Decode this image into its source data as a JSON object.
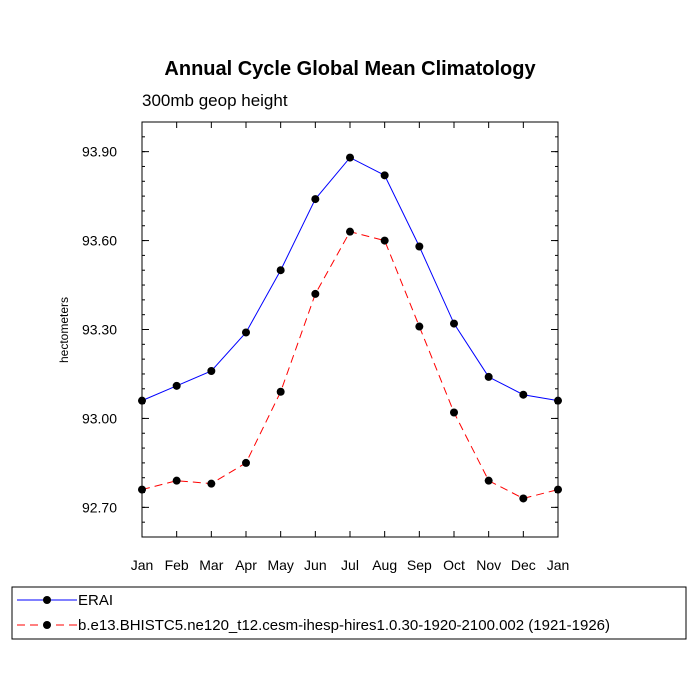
{
  "chart_data": {
    "type": "line",
    "title": "Annual Cycle Global Mean Climatology",
    "subtitle": "300mb geop height",
    "xlabel": "",
    "ylabel": "hectometers",
    "categories": [
      "Jan",
      "Feb",
      "Mar",
      "Apr",
      "May",
      "Jun",
      "Jul",
      "Aug",
      "Sep",
      "Oct",
      "Nov",
      "Dec",
      "Jan"
    ],
    "ylim": [
      92.6,
      94.0
    ],
    "yticks": [
      92.7,
      93.0,
      93.3,
      93.6,
      93.9
    ],
    "ytick_labels": [
      "92.70",
      "93.00",
      "93.30",
      "93.60",
      "93.90"
    ],
    "grid": false,
    "legend_position": "bottom",
    "series": [
      {
        "name": "ERAI",
        "color": "#0000ff",
        "dash": "solid",
        "marker": "dot",
        "values": [
          93.06,
          93.11,
          93.16,
          93.29,
          93.5,
          93.74,
          93.88,
          93.82,
          93.58,
          93.32,
          93.14,
          93.08,
          93.06
        ]
      },
      {
        "name": "b.e13.BHISTC5.ne120_t12.cesm-ihesp-hires1.0.30-1920-2100.002 (1921-1926)",
        "color": "#ff0000",
        "dash": "dashed",
        "marker": "dot",
        "values": [
          92.76,
          92.79,
          92.78,
          92.85,
          93.09,
          93.42,
          93.63,
          93.6,
          93.31,
          93.02,
          92.79,
          92.73,
          92.76
        ]
      }
    ]
  }
}
